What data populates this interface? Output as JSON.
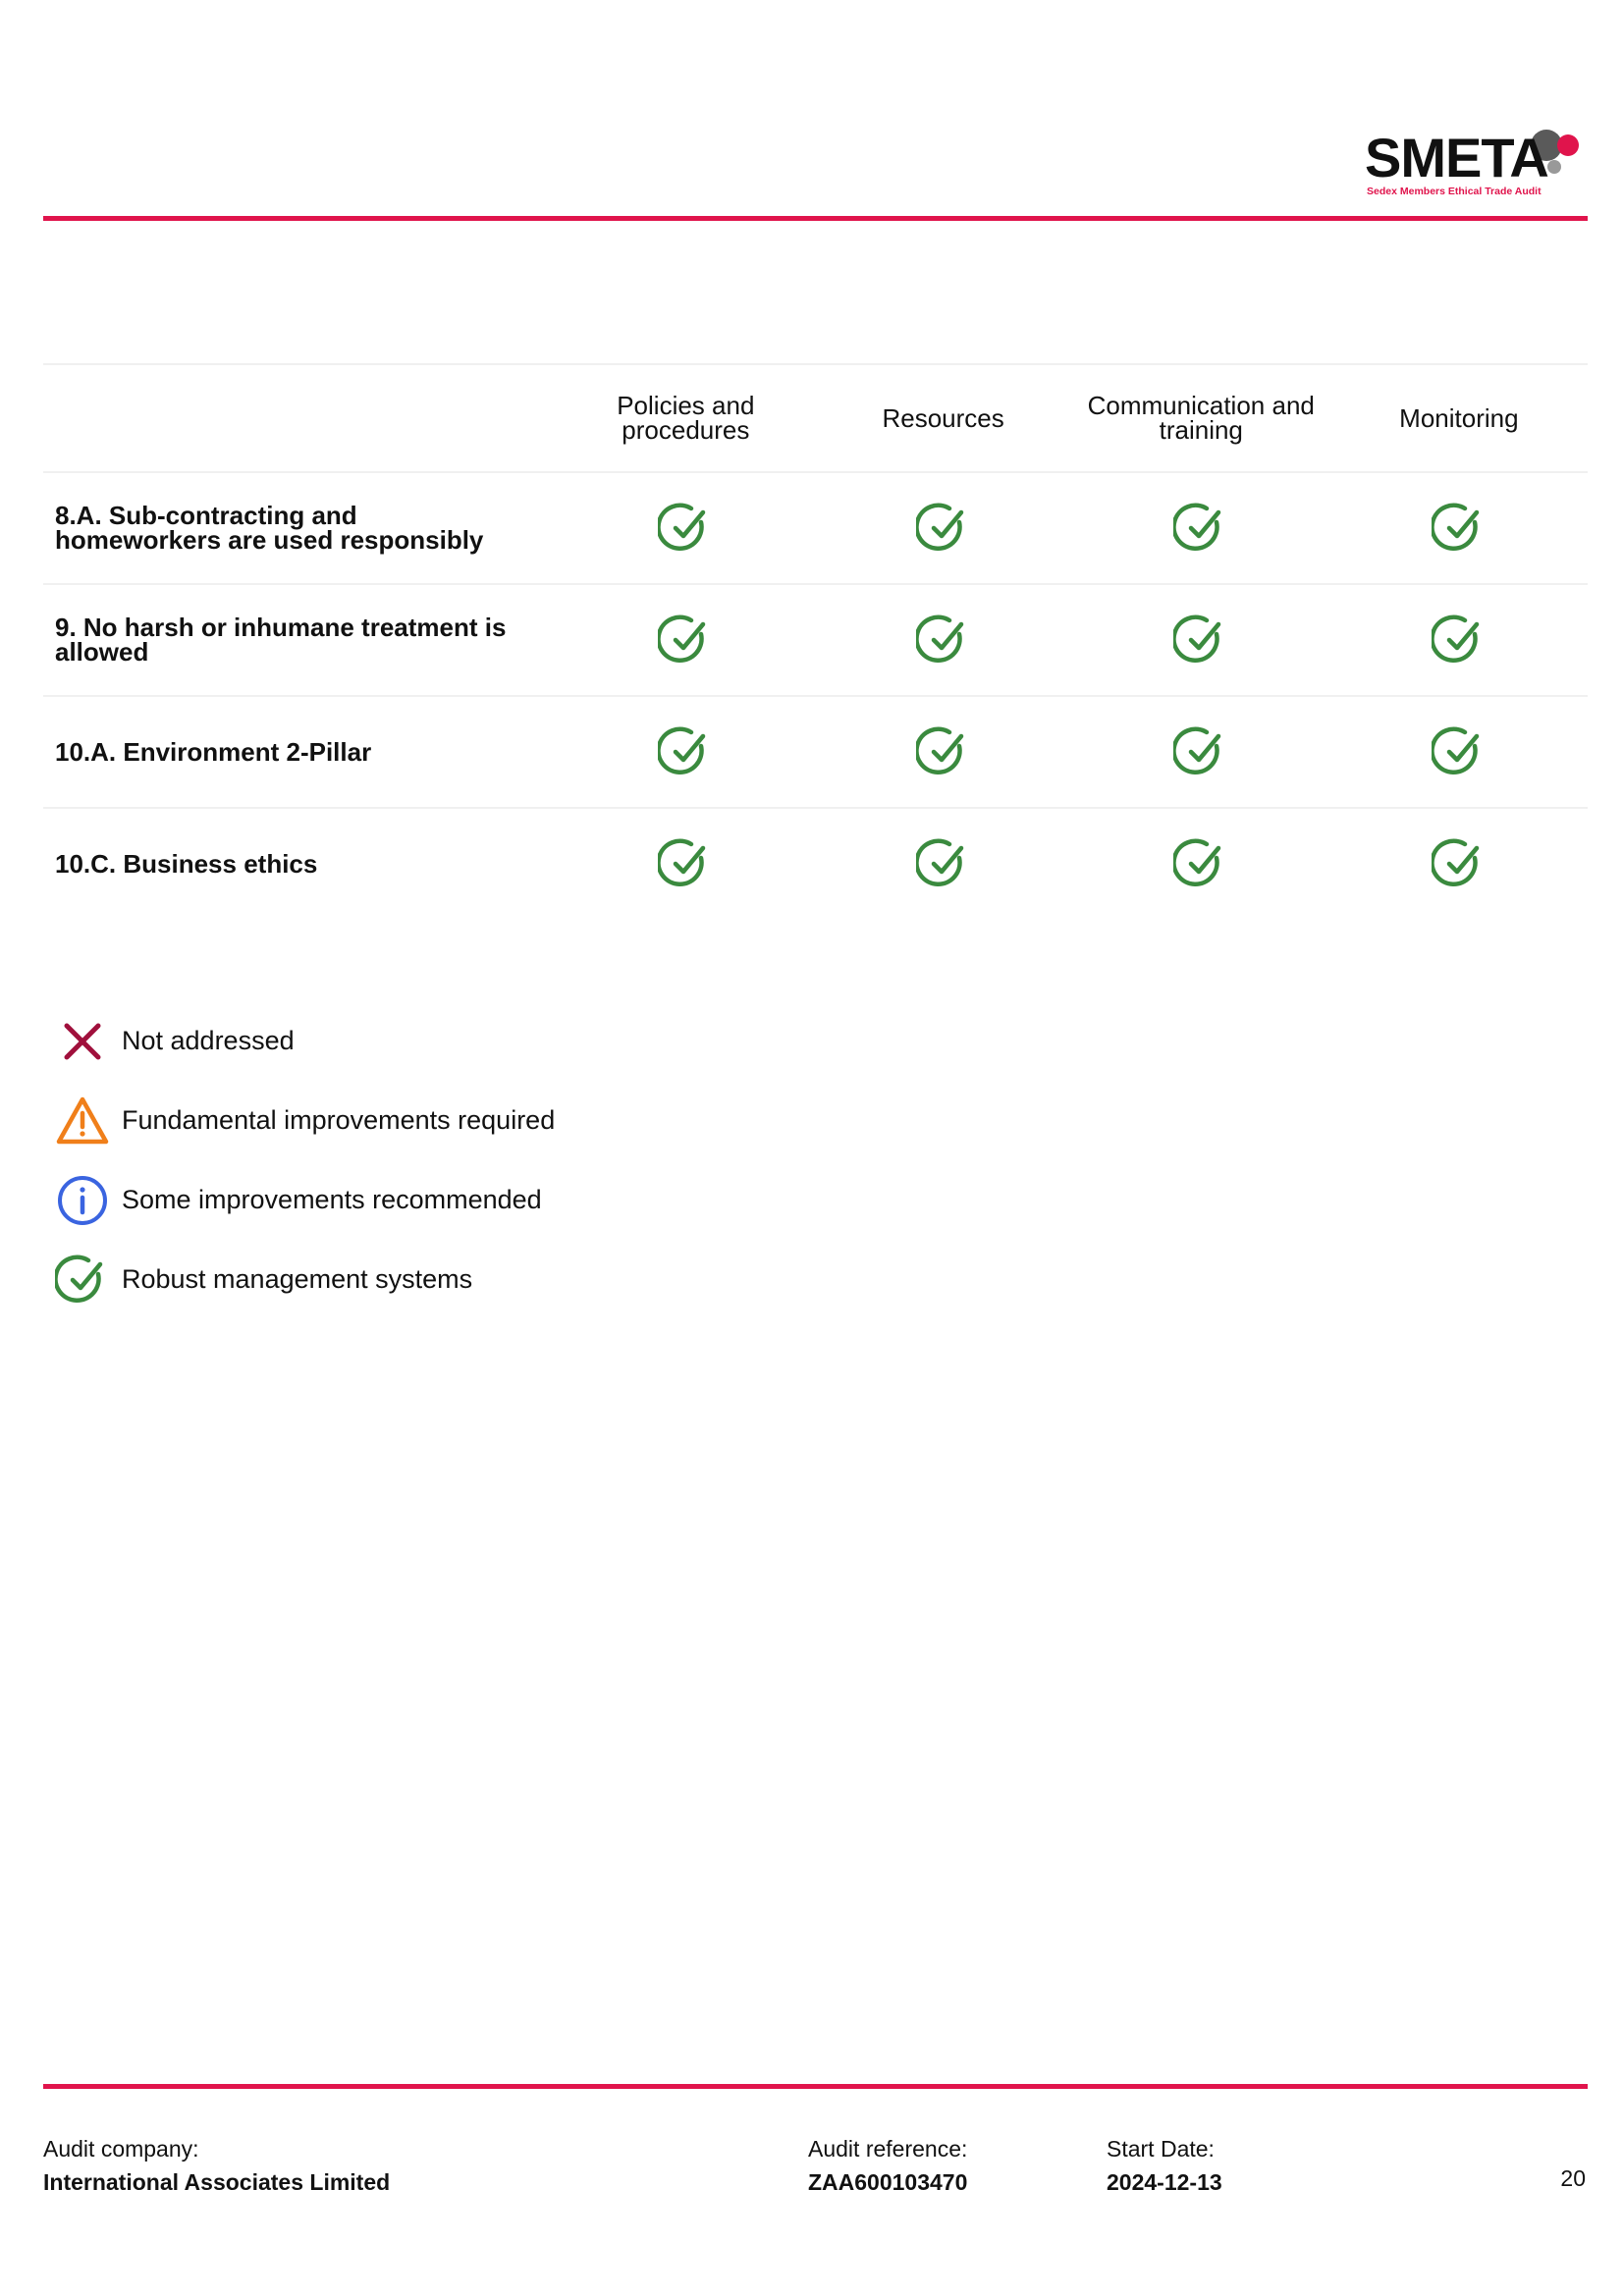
{
  "logo": {
    "text": "SMETA",
    "tagline": "Sedex Members Ethical Trade Audit",
    "colors": {
      "primary": "#111111",
      "accent": "#e0144c",
      "grey": "#666666"
    }
  },
  "table": {
    "columns": [
      "Policies and procedures",
      "Resources",
      "Communication and training",
      "Monitoring"
    ],
    "rows": [
      {
        "label": "8.A. Sub-contracting and homeworkers are used responsibly",
        "status": [
          "robust",
          "robust",
          "robust",
          "robust"
        ]
      },
      {
        "label": "9. No harsh or inhumane treatment is allowed",
        "status": [
          "robust",
          "robust",
          "robust",
          "robust"
        ]
      },
      {
        "label": "10.A. Environment 2-Pillar",
        "status": [
          "robust",
          "robust",
          "robust",
          "robust"
        ]
      },
      {
        "label": "10.C. Business ethics",
        "status": [
          "robust",
          "robust",
          "robust",
          "robust"
        ]
      }
    ]
  },
  "legend": [
    {
      "icon": "x-icon",
      "color": "#a0103c",
      "label": "Not addressed"
    },
    {
      "icon": "warning-icon",
      "color": "#f07f1a",
      "label": "Fundamental improvements required"
    },
    {
      "icon": "info-icon",
      "color": "#3a64e0",
      "label": "Some improvements recommended"
    },
    {
      "icon": "check-circle-icon",
      "color": "#3a8a3e",
      "label": "Robust management systems"
    }
  ],
  "footer": {
    "audit_company_label": "Audit company:",
    "audit_company": "International Associates Limited",
    "audit_reference_label": "Audit reference:",
    "audit_reference": "ZAA600103470",
    "start_date_label": "Start Date:",
    "start_date": "2024-12-13",
    "page_number": "20"
  },
  "accent_color": "#e0144c"
}
